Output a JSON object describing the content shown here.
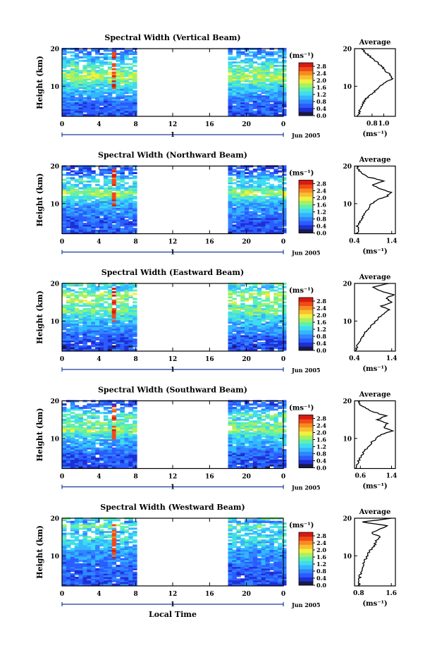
{
  "colors": {
    "scale": [
      "#1a1a4a",
      "#1e2fd6",
      "#2b5cff",
      "#2f86ff",
      "#33b6ff",
      "#3fdcf0",
      "#5ef0b0",
      "#a8f060",
      "#f0f040",
      "#f8c030",
      "#f88a20",
      "#f04a18",
      "#d81a10"
    ],
    "panel_background": "#ffffff",
    "timeline": "#1a3a9a"
  },
  "chart_data": [
    {
      "type": "heatmap",
      "title": "Spectral Width (Vertical Beam)",
      "xlabel": "",
      "ylabel": "Height (km)",
      "x_ticks": [
        "0",
        "4",
        "8",
        "12",
        "16",
        "20",
        "0"
      ],
      "y_ticks": [
        "10",
        "20"
      ],
      "ylim": [
        2,
        20
      ],
      "xlim": [
        0,
        24
      ],
      "data_gap_hours": [
        8.2,
        17.8
      ],
      "day_label": "1",
      "date_label": "Jun 2005",
      "colorbar": {
        "unit": "(ms⁻¹)",
        "ticks": [
          "0.0",
          "0.4",
          "0.8",
          "1.2",
          "1.6",
          "2.0",
          "2.4",
          "2.8"
        ],
        "range": [
          0,
          3.0
        ]
      },
      "average": {
        "title": "Average",
        "xlabel": "(ms⁻¹)",
        "x_ticks": [
          "0.8",
          "1.0"
        ],
        "xlim": [
          0.5,
          1.2
        ],
        "heights": [
          2,
          3,
          4,
          5,
          6,
          7,
          8,
          9,
          10,
          11,
          12,
          13,
          14,
          15,
          16,
          17,
          18,
          19,
          20
        ],
        "values": [
          0.55,
          0.58,
          0.6,
          0.62,
          0.66,
          0.72,
          0.8,
          0.86,
          0.92,
          1.02,
          1.14,
          1.12,
          1.02,
          0.98,
          0.92,
          0.84,
          0.76,
          0.68,
          0.62
        ]
      }
    },
    {
      "type": "heatmap",
      "title": "Spectral Width (Northward Beam)",
      "xlabel": "",
      "ylabel": "Height (km)",
      "x_ticks": [
        "0",
        "4",
        "8",
        "12",
        "16",
        "20",
        "0"
      ],
      "y_ticks": [
        "10",
        "20"
      ],
      "ylim": [
        2,
        20
      ],
      "xlim": [
        0,
        24
      ],
      "data_gap_hours": [
        8.2,
        17.8
      ],
      "day_label": "1",
      "date_label": "Jun 2005",
      "colorbar": {
        "unit": "(ms⁻¹)",
        "ticks": [
          "0.0",
          "0.4",
          "0.8",
          "1.2",
          "1.6",
          "2.0",
          "2.4",
          "2.8"
        ],
        "range": [
          0,
          3.0
        ]
      },
      "average": {
        "title": "Average",
        "xlabel": "(ms⁻¹)",
        "x_ticks": [
          "0.4",
          "1.4"
        ],
        "xlim": [
          0.4,
          1.5
        ],
        "heights": [
          2,
          3,
          4,
          5,
          6,
          7,
          8,
          9,
          10,
          11,
          12,
          13,
          14,
          15,
          16,
          17,
          18,
          19,
          20
        ],
        "values": [
          0.45,
          0.5,
          0.48,
          0.55,
          0.6,
          0.66,
          0.72,
          0.78,
          0.86,
          1.0,
          1.28,
          1.4,
          1.05,
          0.9,
          1.2,
          0.8,
          0.6,
          0.5,
          0.48
        ]
      }
    },
    {
      "type": "heatmap",
      "title": "Spectral Width (Eastward Beam)",
      "xlabel": "",
      "ylabel": "Height (km)",
      "x_ticks": [
        "0",
        "4",
        "8",
        "12",
        "16",
        "20",
        "0"
      ],
      "y_ticks": [
        "10",
        "20"
      ],
      "ylim": [
        2,
        20
      ],
      "xlim": [
        0,
        24
      ],
      "data_gap_hours": [
        8.2,
        17.8
      ],
      "day_label": "1",
      "date_label": "Jun 2005",
      "colorbar": {
        "unit": "(ms⁻¹)",
        "ticks": [
          "0.0",
          "0.4",
          "0.8",
          "1.2",
          "1.6",
          "2.0",
          "2.4",
          "2.8"
        ],
        "range": [
          0,
          3.0
        ]
      },
      "average": {
        "title": "Average",
        "xlabel": "(ms⁻¹)",
        "x_ticks": [
          "0.4",
          "1.4"
        ],
        "xlim": [
          0.4,
          1.5
        ],
        "heights": [
          2,
          3,
          4,
          5,
          6,
          7,
          8,
          9,
          10,
          11,
          12,
          13,
          14,
          15,
          16,
          17,
          18,
          19,
          20
        ],
        "values": [
          0.45,
          0.46,
          0.5,
          0.55,
          0.62,
          0.7,
          0.78,
          0.88,
          0.98,
          1.06,
          1.2,
          1.32,
          1.12,
          1.4,
          1.25,
          1.45,
          1.1,
          0.9,
          1.3
        ]
      }
    },
    {
      "type": "heatmap",
      "title": "Spectral Width (Southward Beam)",
      "xlabel": "",
      "ylabel": "Height (km)",
      "x_ticks": [
        "0",
        "4",
        "8",
        "12",
        "16",
        "20",
        "0"
      ],
      "y_ticks": [
        "10",
        "20"
      ],
      "ylim": [
        2,
        20
      ],
      "xlim": [
        0,
        24
      ],
      "data_gap_hours": [
        8.2,
        17.8
      ],
      "day_label": "1",
      "date_label": "Jun 2005",
      "colorbar": {
        "unit": "(ms⁻¹)",
        "ticks": [
          "0.0",
          "0.4",
          "0.8",
          "1.2",
          "1.6",
          "2.0",
          "2.4",
          "2.8"
        ],
        "range": [
          0,
          3.0
        ]
      },
      "average": {
        "title": "Average",
        "xlabel": "(ms⁻¹)",
        "x_ticks": [
          "0.6",
          "1.4"
        ],
        "xlim": [
          0.45,
          1.5
        ],
        "heights": [
          2,
          3,
          4,
          5,
          6,
          7,
          8,
          9,
          10,
          11,
          12,
          13,
          14,
          15,
          16,
          17,
          18,
          19,
          20
        ],
        "values": [
          0.5,
          0.52,
          0.55,
          0.6,
          0.66,
          0.74,
          0.82,
          0.9,
          1.0,
          1.12,
          1.42,
          1.2,
          1.3,
          1.05,
          1.25,
          0.95,
          0.75,
          0.6,
          0.55
        ]
      }
    },
    {
      "type": "heatmap",
      "title": "Spectral Width (Westward Beam)",
      "xlabel": "Local Time",
      "ylabel": "Height (km)",
      "x_ticks": [
        "0",
        "4",
        "8",
        "12",
        "16",
        "20",
        "0"
      ],
      "y_ticks": [
        "10",
        "20"
      ],
      "ylim": [
        2,
        20
      ],
      "xlim": [
        0,
        24
      ],
      "data_gap_hours": [
        8.2,
        17.8
      ],
      "day_label": "1",
      "date_label": "Jun 2005",
      "colorbar": {
        "unit": "(ms⁻¹)",
        "ticks": [
          "0.0",
          "0.4",
          "0.8",
          "1.2",
          "1.6",
          "2.0",
          "2.4",
          "2.8"
        ],
        "range": [
          0,
          3.0
        ]
      },
      "average": {
        "title": "Average",
        "xlabel": "(ms⁻¹)",
        "x_ticks": [
          "0.8",
          "1.6"
        ],
        "xlim": [
          0.7,
          1.7
        ],
        "heights": [
          2,
          3,
          4,
          5,
          6,
          7,
          8,
          9,
          10,
          11,
          12,
          13,
          14,
          15,
          16,
          17,
          18,
          19,
          20
        ],
        "values": [
          0.8,
          0.82,
          0.82,
          0.84,
          0.86,
          0.9,
          0.92,
          0.96,
          1.0,
          1.06,
          1.12,
          1.2,
          1.22,
          1.35,
          1.1,
          1.3,
          1.5,
          0.9,
          1.6
        ]
      }
    }
  ]
}
